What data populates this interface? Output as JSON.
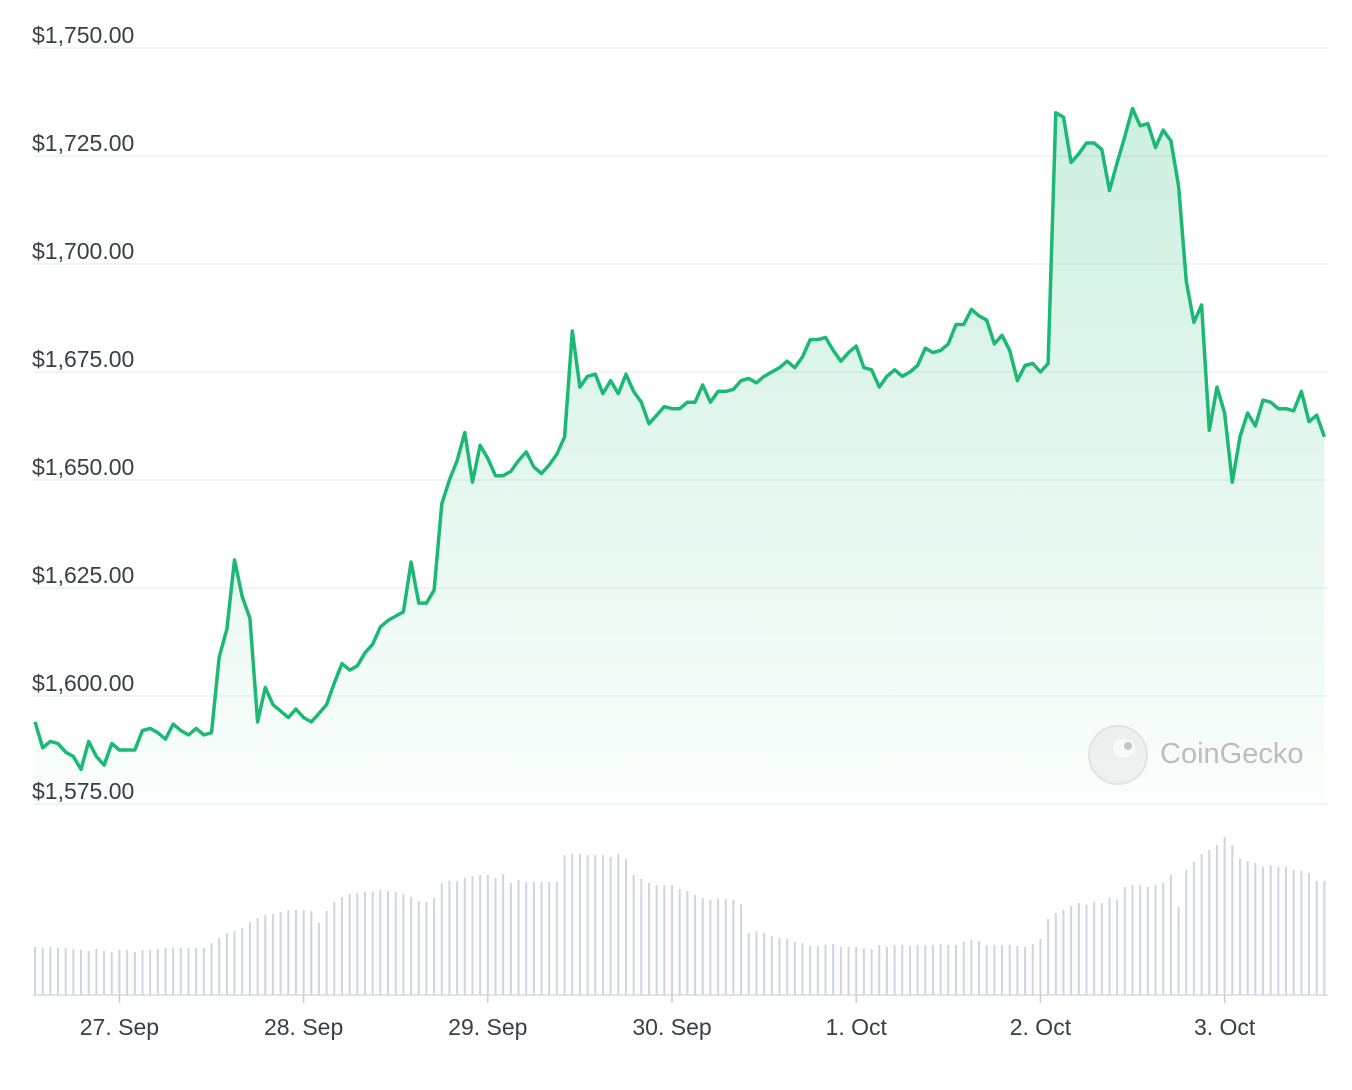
{
  "chart_data": {
    "type": "line",
    "color": "#1bb974",
    "ylim": [
      1575,
      1750
    ],
    "yticks": [
      {
        "value": 1750,
        "label": "$1,750.00"
      },
      {
        "value": 1725,
        "label": "$1,725.00"
      },
      {
        "value": 1700,
        "label": "$1,700.00"
      },
      {
        "value": 1675,
        "label": "$1,675.00"
      },
      {
        "value": 1650,
        "label": "$1,650.00"
      },
      {
        "value": 1625,
        "label": "$1,625.00"
      },
      {
        "value": 1600,
        "label": "$1,600.00"
      },
      {
        "value": 1575,
        "label": "$1,575.00"
      }
    ],
    "grid": true,
    "watermark": "CoinGecko",
    "categories": [
      null,
      null,
      null,
      null,
      null,
      null,
      null,
      null,
      null,
      null,
      null,
      "27. Sep",
      null,
      null,
      null,
      null,
      null,
      null,
      null,
      null,
      null,
      null,
      null,
      null,
      null,
      null,
      null,
      null,
      null,
      null,
      null,
      null,
      null,
      null,
      null,
      "28. Sep",
      null,
      null,
      null,
      null,
      null,
      null,
      null,
      null,
      null,
      null,
      null,
      null,
      null,
      null,
      null,
      null,
      null,
      null,
      null,
      null,
      null,
      null,
      null,
      "29. Sep",
      null,
      null,
      null,
      null,
      null,
      null,
      null,
      null,
      null,
      null,
      null,
      null,
      null,
      null,
      null,
      null,
      null,
      null,
      null,
      null,
      null,
      null,
      null,
      "30. Sep",
      null,
      null,
      null,
      null,
      null,
      null,
      null,
      null,
      null,
      null,
      null,
      null,
      null,
      null,
      null,
      null,
      null,
      null,
      null,
      null,
      null,
      null,
      null,
      "1. Oct",
      null,
      null,
      null,
      null,
      null,
      null,
      null,
      null,
      null,
      null,
      null,
      null,
      null,
      null,
      null,
      null,
      null,
      null,
      null,
      null,
      null,
      null,
      null,
      "2. Oct",
      null,
      null,
      null,
      null,
      null,
      null,
      null,
      null,
      null,
      null,
      null,
      null,
      null,
      null,
      null,
      null,
      null,
      null,
      null,
      null,
      null,
      null,
      null,
      "3. Oct",
      null,
      null,
      null,
      null,
      null,
      null,
      null,
      null,
      null,
      null,
      null,
      null,
      null
    ],
    "values": [
      1594,
      1588,
      1589.5,
      1589,
      1587,
      1586,
      1583,
      1589.5,
      1586,
      1584,
      1589,
      1587.5,
      1587.5,
      1587.5,
      1592,
      1592.5,
      1591.5,
      1590,
      1593.5,
      1592,
      1591,
      1592.5,
      1591,
      1591.5,
      1609,
      1615.5,
      1631.5,
      1623,
      1618,
      1594,
      1602,
      1598,
      1596.5,
      1595,
      1597,
      1595,
      1594,
      1596,
      1598,
      1603,
      1607.5,
      1606,
      1607,
      1610,
      1612,
      1616,
      1617.5,
      1618.5,
      1619.5,
      1631,
      1621.5,
      1621.5,
      1624.5,
      1644.5,
      1650,
      1654.5,
      1661,
      1649.5,
      1658,
      1655,
      1651,
      1651,
      1652,
      1654.5,
      1656.5,
      1653,
      1651.5,
      1653.5,
      1656,
      1660,
      1684.5,
      1671.5,
      1674,
      1674.5,
      1670,
      1673,
      1670,
      1674.5,
      1670.5,
      1668,
      1663,
      1665,
      1667,
      1666.5,
      1666.5,
      1668,
      1668,
      1672,
      1668,
      1670.5,
      1670.5,
      1671,
      1673,
      1673.5,
      1672.5,
      1674,
      1675,
      1676,
      1677.5,
      1676,
      1678.5,
      1682.5,
      1682.5,
      1683,
      1680,
      1677.5,
      1679.5,
      1681,
      1676,
      1675.5,
      1671.5,
      1674,
      1675.5,
      1674,
      1675,
      1676.5,
      1680.5,
      1679.5,
      1680,
      1681.5,
      1686,
      1686,
      1689.5,
      1688,
      1687,
      1681.5,
      1683.5,
      1680,
      1673,
      1676.5,
      1677,
      1675,
      1677,
      1735,
      1734,
      1723.5,
      1725.5,
      1728,
      1728,
      1726.5,
      1717,
      1723.5,
      1729.5,
      1736,
      1732,
      1732.5,
      1727,
      1731,
      1728.5,
      1718,
      1696,
      1686.5,
      1690.5,
      1661.5,
      1671.5,
      1665.5,
      1649.5,
      1660,
      1665.5,
      1662.5,
      1668.5,
      1668,
      1666.5,
      1666.5,
      1666,
      1670.5,
      1663.5,
      1665,
      1660
    ],
    "y2lim": [
      0,
      170
    ],
    "volume": {
      "color": "#cdd5e0",
      "values": [
        48,
        47,
        48,
        47,
        47,
        46,
        45,
        44,
        46,
        44,
        43,
        45,
        45,
        43,
        45,
        45,
        46,
        47,
        47,
        47,
        47,
        47,
        47,
        52,
        57,
        62,
        64,
        67,
        73,
        77,
        80,
        81,
        83,
        85,
        85,
        85,
        84,
        72,
        84,
        93,
        98,
        101,
        102,
        103,
        103,
        105,
        104,
        103,
        101,
        98,
        94,
        93,
        97,
        112,
        114,
        114,
        117,
        119,
        120,
        120,
        117,
        121,
        112,
        115,
        113,
        113,
        113,
        113,
        113,
        140,
        141,
        141,
        140,
        140,
        140,
        138,
        141,
        136,
        120,
        116,
        112,
        110,
        110,
        110,
        106,
        104,
        100,
        97,
        95,
        96,
        96,
        95,
        91,
        62,
        64,
        62,
        59,
        57,
        56,
        53,
        52,
        49,
        49,
        50,
        51,
        48,
        48,
        48,
        47,
        46,
        50,
        48,
        50,
        50,
        49,
        50,
        50,
        50,
        51,
        50,
        50,
        53,
        55,
        54,
        50,
        50,
        50,
        50,
        49,
        48,
        51,
        56,
        76,
        82,
        85,
        89,
        92,
        90,
        93,
        92,
        97,
        95,
        108,
        110,
        110,
        108,
        110,
        112,
        120,
        88,
        125,
        133,
        141,
        145,
        150,
        158,
        150,
        136,
        134,
        132,
        128,
        130,
        128,
        128,
        125,
        124,
        122,
        114,
        114
      ]
    }
  }
}
